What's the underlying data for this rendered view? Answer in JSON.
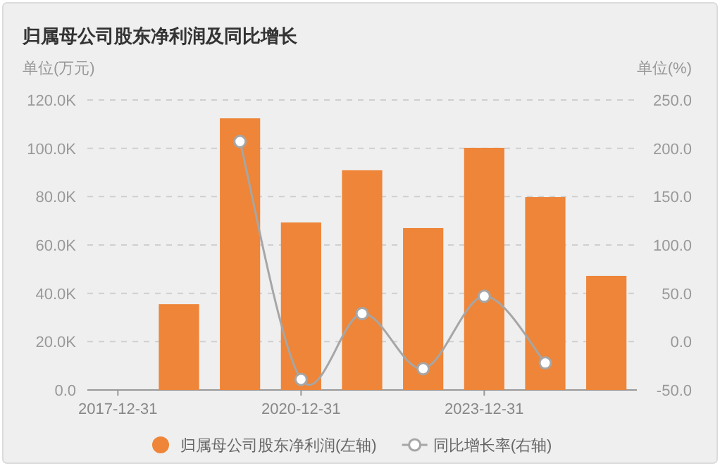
{
  "chart_data": {
    "type": "bar",
    "title": "归属母公司股东净利润及同比增长",
    "ylabel": "单位(万元)",
    "y2label": "单位(%)",
    "categories": [
      "2017-12-31",
      null,
      null,
      "2020-12-31",
      null,
      null,
      "2023-12-31",
      null,
      null
    ],
    "series": [
      {
        "name": "归属母公司股东净利润(左轴)",
        "color": "#ee8538",
        "values": [
          null,
          35500,
          112400,
          69300,
          90900,
          67000,
          100200,
          79800,
          47200
        ]
      },
      {
        "name": "同比增长率(右轴)",
        "type": "line",
        "axis": "y2",
        "color": "#a6a6a6",
        "marker": "circle",
        "values": [
          null,
          null,
          207,
          -39,
          29,
          -28,
          47,
          -22,
          null
        ]
      }
    ],
    "ylim": [
      0,
      120000
    ],
    "yticks": [
      {
        "value": 0,
        "label": "0.0"
      },
      {
        "value": 20000,
        "label": "20.0K"
      },
      {
        "value": 40000,
        "label": "40.0K"
      },
      {
        "value": 60000,
        "label": "60.0K"
      },
      {
        "value": 80000,
        "label": "80.0K"
      },
      {
        "value": 100000,
        "label": "100.0K"
      },
      {
        "value": 120000,
        "label": "120.0K"
      }
    ],
    "y2lim": [
      -50,
      250
    ],
    "y2ticks": [
      {
        "value": -50,
        "label": "-50.0"
      },
      {
        "value": 0,
        "label": "0.0"
      },
      {
        "value": 50,
        "label": "50.0"
      },
      {
        "value": 100,
        "label": "100.0"
      },
      {
        "value": 150,
        "label": "150.0"
      },
      {
        "value": 200,
        "label": "200.0"
      },
      {
        "value": 250,
        "label": "250.0"
      }
    ],
    "grid": "y",
    "legend": "bottom"
  }
}
